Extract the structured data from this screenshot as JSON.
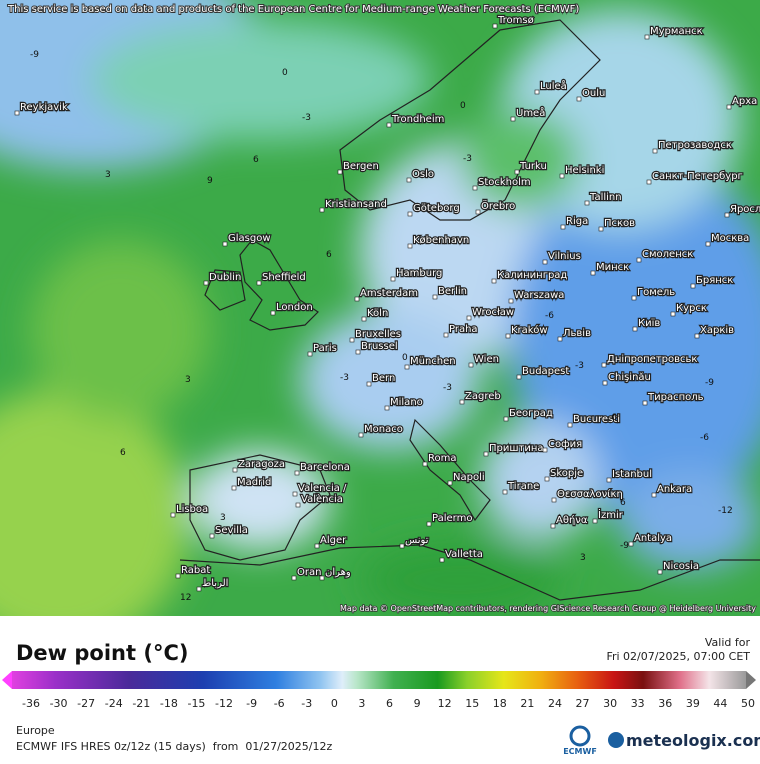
{
  "header": {
    "notice": "This service is based on data and products of the European Centre for Medium-range Weather Forecasts (ECMWF)"
  },
  "map": {
    "cities": [
      "Tromsø",
      "Мурманск",
      "Luleå",
      "Oulu",
      "Арха",
      "Reykjavik",
      "Trondheim",
      "Umeå",
      "Петрозаводск",
      "Bergen",
      "Oslo",
      "Turku",
      "Helsinki",
      "Stockholm",
      "Санкт-Петербург",
      "Kristiansand",
      "Göteborg",
      "Örebro",
      "Tallinn",
      "Яросл",
      "Glasgow",
      "København",
      "Riga",
      "Псков",
      "Москва",
      "Vilnius",
      "Минск",
      "Смоленск",
      "Dublin",
      "Sheffield",
      "Hamburg",
      "Калининград",
      "Брянск",
      "Amsterdam",
      "Berlin",
      "Warszawa",
      "Гомель",
      "London",
      "Köln",
      "Wrocław",
      "Курск",
      "Bruxelles",
      "Brussel",
      "Praha",
      "Kraków",
      "Львів",
      "Київ",
      "Харків",
      "Paris",
      "München",
      "Wien",
      "Дніпропетровськ",
      "Budapest",
      "Chişinău",
      "Bern",
      "Zagreb",
      "Тирасполь",
      "Milano",
      "Београд",
      "Bucuresti",
      "Monaco",
      "Приштина",
      "София",
      "Roma",
      "Zaragoza",
      "Barcelona",
      "Napoli",
      "Skopje",
      "Istanbul",
      "Madrid",
      "Valencia /",
      "València",
      "Tirane",
      "Θεσσαλονίκη",
      "Ankara",
      "Lisboa",
      "İzmir",
      "Αθήνα",
      "Palermo",
      "Sevilla",
      "Alger",
      "تونس",
      "Antalya",
      "Valletta",
      "Nicosia",
      "Rabat",
      "الرباط",
      "Oran",
      "وهران"
    ],
    "contour_labels": [
      -9,
      0,
      -3,
      3,
      6,
      9,
      6,
      0,
      -3,
      -3,
      3,
      6,
      3,
      0,
      -3,
      -6,
      -3,
      -6,
      -6,
      -9,
      3,
      6,
      -12,
      -9,
      12
    ],
    "attribution": "Map data © OpenStreetMap contributors, rendering GIScience Research Group @ Heidelberg University"
  },
  "legend": {
    "title": "Dew point (°C)",
    "valid_label": "Valid for",
    "valid_time": "Fri 02/07/2025, 07:00 CET",
    "ticks": [
      -36,
      -30,
      -27,
      -24,
      -21,
      -18,
      -15,
      -12,
      -9,
      -6,
      -3,
      0,
      3,
      6,
      9,
      12,
      15,
      18,
      21,
      24,
      27,
      30,
      33,
      36,
      39,
      44,
      50
    ]
  },
  "footer": {
    "region": "Europe",
    "model": "ECMWF IFS HRES 0z/12z (15 days)  from  01/27/2025/12z",
    "ecmwf_logo": "ECMWF",
    "brand": "meteologix.com"
  }
}
